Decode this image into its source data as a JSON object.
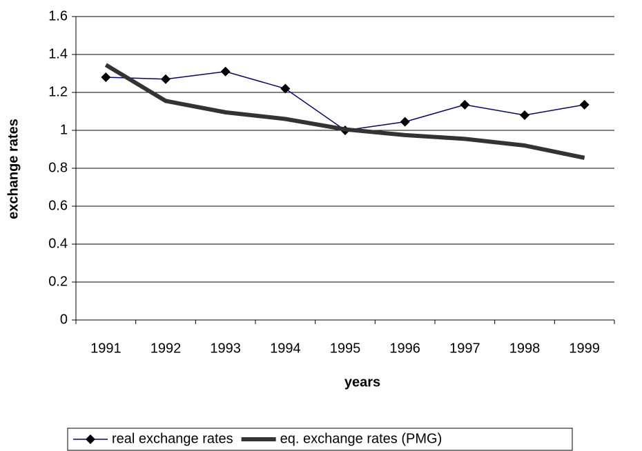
{
  "chart_data": {
    "type": "line",
    "x_label": "years",
    "y_label": "exchange rates",
    "categories": [
      "1991",
      "1992",
      "1993",
      "1994",
      "1995",
      "1996",
      "1997",
      "1998",
      "1999"
    ],
    "series": [
      {
        "name": "real exchange rates",
        "color": "#000080",
        "marker_color": "#000000",
        "line_width": 1.5,
        "marker": "diamond",
        "values": [
          1.28,
          1.27,
          1.31,
          1.22,
          1.0,
          1.045,
          1.135,
          1.08,
          1.135
        ]
      },
      {
        "name": "eq. exchange rates (PMG)",
        "color": "#333333",
        "line_width": 6,
        "marker": "none",
        "values": [
          1.345,
          1.155,
          1.095,
          1.06,
          1.005,
          0.975,
          0.955,
          0.92,
          0.855
        ]
      }
    ],
    "ylim": [
      0,
      1.6
    ],
    "yticks": [
      0,
      0.2,
      0.4,
      0.6,
      0.8,
      1,
      1.2,
      1.4,
      1.6
    ],
    "grid": true
  }
}
